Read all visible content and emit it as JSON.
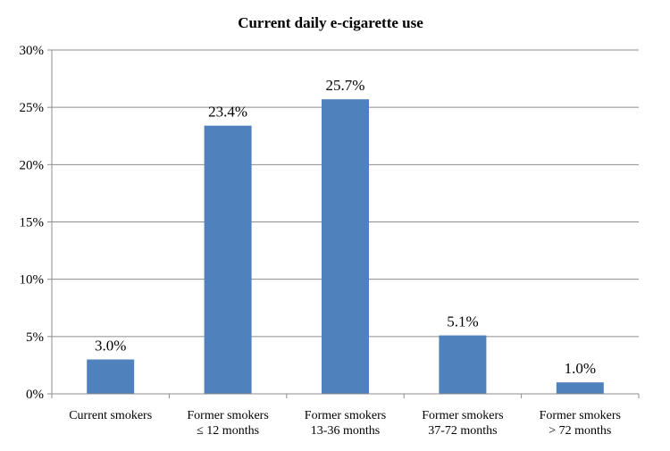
{
  "chart_data": {
    "type": "bar",
    "title": "Current daily e-cigarette use",
    "xlabel": "",
    "ylabel": "",
    "categories": [
      [
        "Current smokers"
      ],
      [
        "Former smokers",
        "≤ 12 months"
      ],
      [
        "Former smokers",
        "13-36 months"
      ],
      [
        "Former smokers",
        "37-72 months"
      ],
      [
        "Former smokers",
        "> 72 months"
      ]
    ],
    "values": [
      3.0,
      23.4,
      25.7,
      5.1,
      1.0
    ],
    "data_labels": [
      "3.0%",
      "23.4%",
      "25.7%",
      "5.1%",
      "1.0%"
    ],
    "ylim": [
      0,
      30
    ],
    "y_ticks": [
      0,
      5,
      10,
      15,
      20,
      25,
      30
    ],
    "y_tick_labels": [
      "0%",
      "5%",
      "10%",
      "15%",
      "20%",
      "25%",
      "30%"
    ],
    "grid": true,
    "legend": "none",
    "bar_color": "#4f81bd"
  }
}
